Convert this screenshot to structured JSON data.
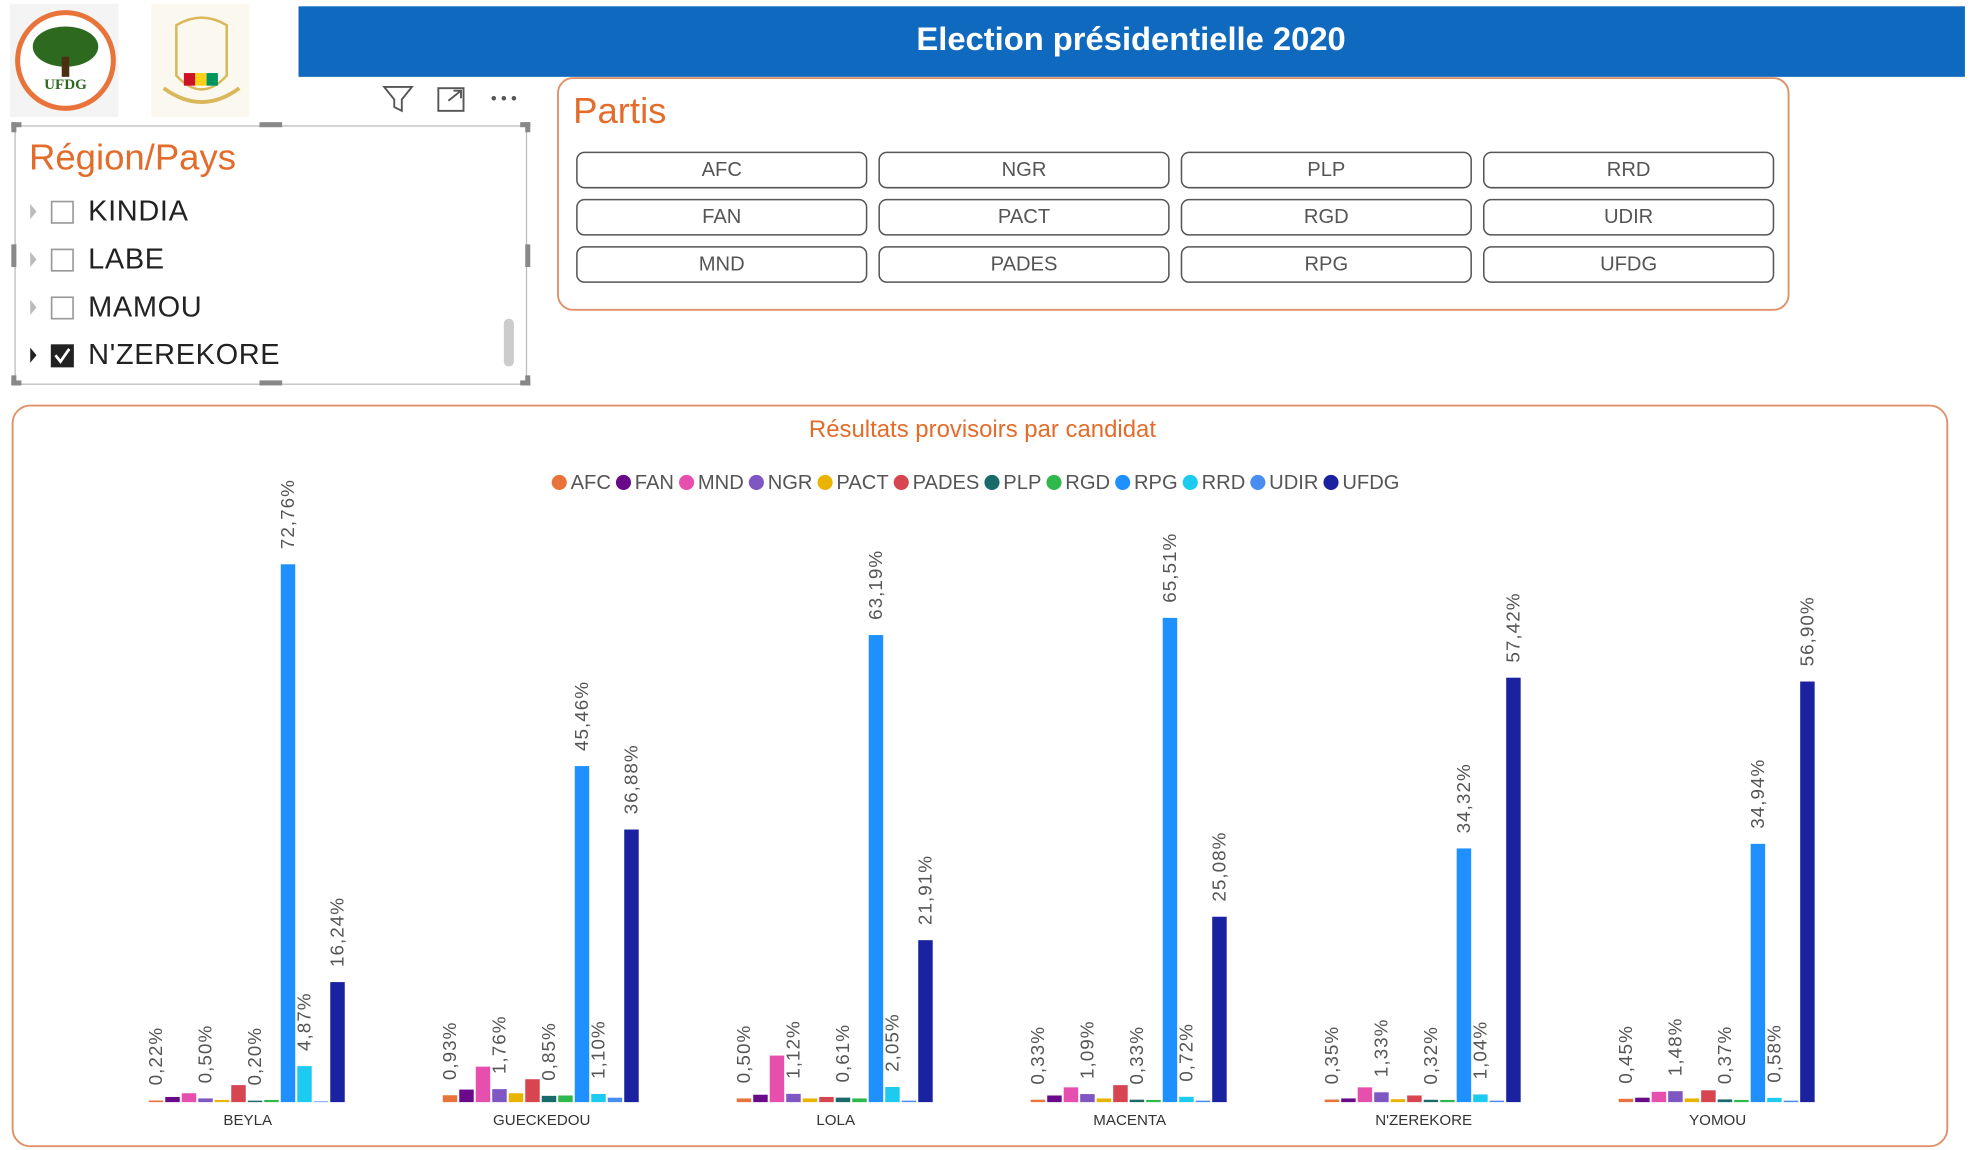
{
  "header": {
    "title": "Election présidentielle 2020"
  },
  "logos": {
    "ufdg_text": "UFDG"
  },
  "slicer": {
    "title": "Région/Pays",
    "items": [
      {
        "label": "KINDIA",
        "checked": false
      },
      {
        "label": "LABE",
        "checked": false
      },
      {
        "label": "MAMOU",
        "checked": false
      },
      {
        "label": "N'ZEREKORE",
        "checked": true
      }
    ]
  },
  "parties": {
    "title": "Partis",
    "buttons": [
      "AFC",
      "FAN",
      "MND",
      "NGR",
      "PACT",
      "PADES",
      "PLP",
      "RGD",
      "RPG",
      "RRD",
      "UDIR",
      "UFDG"
    ]
  },
  "chart_data": {
    "type": "bar",
    "title": "Résultats provisoirs par candidat",
    "categories": [
      "BEYLA",
      "GUECKEDOU",
      "LOLA",
      "MACENTA",
      "N'ZEREKORE",
      "YOMOU"
    ],
    "series": [
      {
        "name": "AFC",
        "color": "#e8743b",
        "values": [
          0.22,
          0.93,
          0.5,
          0.33,
          0.35,
          0.45
        ],
        "value_labels": [
          "0,22%",
          "0,93%",
          "0,50%",
          "0,33%",
          "0,35%",
          "0,45%"
        ]
      },
      {
        "name": "FAN",
        "color": "#6a0a8a",
        "values": [
          0.7,
          1.7,
          1.0,
          0.9,
          0.5,
          0.6
        ]
      },
      {
        "name": "MND",
        "color": "#e64fae",
        "values": [
          1.2,
          4.8,
          6.3,
          2.0,
          2.0,
          1.4
        ]
      },
      {
        "name": "NGR",
        "color": "#7e57c2",
        "values": [
          0.5,
          1.76,
          1.12,
          1.09,
          1.33,
          1.48
        ],
        "value_labels": [
          "0,50%",
          "1,76%",
          "1,12%",
          "1,09%",
          "1,33%",
          "1,48%"
        ]
      },
      {
        "name": "PACT",
        "color": "#e8b400",
        "values": [
          0.3,
          1.2,
          0.5,
          0.5,
          0.4,
          0.5
        ]
      },
      {
        "name": "PADES",
        "color": "#d64550",
        "values": [
          2.3,
          3.1,
          0.7,
          2.3,
          0.9,
          1.6
        ]
      },
      {
        "name": "PLP",
        "color": "#1b6a6a",
        "values": [
          0.2,
          0.85,
          0.61,
          0.33,
          0.32,
          0.37
        ],
        "value_labels": [
          "0,20%",
          "0,85%",
          "0,61%",
          "0,33%",
          "0,32%",
          "0,37%"
        ]
      },
      {
        "name": "RGD",
        "color": "#2fb84c",
        "values": [
          0.3,
          0.9,
          0.5,
          0.3,
          0.3,
          0.3
        ]
      },
      {
        "name": "RPG",
        "color": "#1e90ff",
        "values": [
          72.76,
          45.46,
          63.19,
          65.51,
          34.32,
          34.94
        ],
        "value_labels": [
          "72,76%",
          "45,46%",
          "63,19%",
          "65,51%",
          "34,32%",
          "34,94%"
        ]
      },
      {
        "name": "RRD",
        "color": "#1ecbf0",
        "values": [
          4.87,
          1.1,
          2.05,
          0.72,
          1.04,
          0.58
        ],
        "value_labels": [
          "4,87%",
          "1,10%",
          "2,05%",
          "0,72%",
          "1,04%",
          "0,58%"
        ]
      },
      {
        "name": "UDIR",
        "color": "#4a8df0",
        "values": [
          0.1,
          0.6,
          0.2,
          0.2,
          0.2,
          0.2
        ]
      },
      {
        "name": "UFDG",
        "color": "#1a22a0",
        "values": [
          16.24,
          36.88,
          21.91,
          25.08,
          57.42,
          56.9
        ],
        "value_labels": [
          "16,24%",
          "36,88%",
          "21,91%",
          "25,08%",
          "57,42%",
          "56,90%"
        ]
      }
    ]
  }
}
